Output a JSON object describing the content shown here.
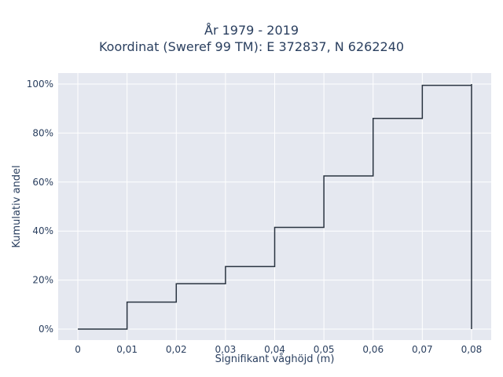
{
  "chart_data": {
    "type": "line",
    "line_shape": "step",
    "title": "År 1979 - 2019",
    "subtitle": "Koordinat (Sweref 99 TM): E 372837, N 6262240",
    "xlabel": "Signifikant våghöjd (m)",
    "ylabel": "Kumulativ andel",
    "x": [
      0,
      0.01,
      0.02,
      0.03,
      0.04,
      0.05,
      0.06,
      0.07,
      0.08,
      0.08
    ],
    "y": [
      0,
      0.11,
      0.185,
      0.255,
      0.415,
      0.625,
      0.86,
      0.995,
      1.0,
      0
    ],
    "xlim": [
      -0.004,
      0.084
    ],
    "ylim": [
      -0.045,
      1.045
    ],
    "x_ticks": [
      0,
      0.01,
      0.02,
      0.03,
      0.04,
      0.05,
      0.06,
      0.07,
      0.08
    ],
    "x_tick_labels": [
      "0",
      "0,01",
      "0,02",
      "0,03",
      "0,04",
      "0,05",
      "0,06",
      "0,07",
      "0,08"
    ],
    "y_ticks": [
      0,
      0.2,
      0.4,
      0.6,
      0.8,
      1.0
    ],
    "y_tick_labels": [
      "0%",
      "20%",
      "40%",
      "60%",
      "80%",
      "100%"
    ],
    "grid": true,
    "colors": {
      "plot_bg": "#e5e8f0",
      "grid": "#ffffff",
      "line": "#2a3441",
      "text": "#2a3f5f"
    }
  }
}
